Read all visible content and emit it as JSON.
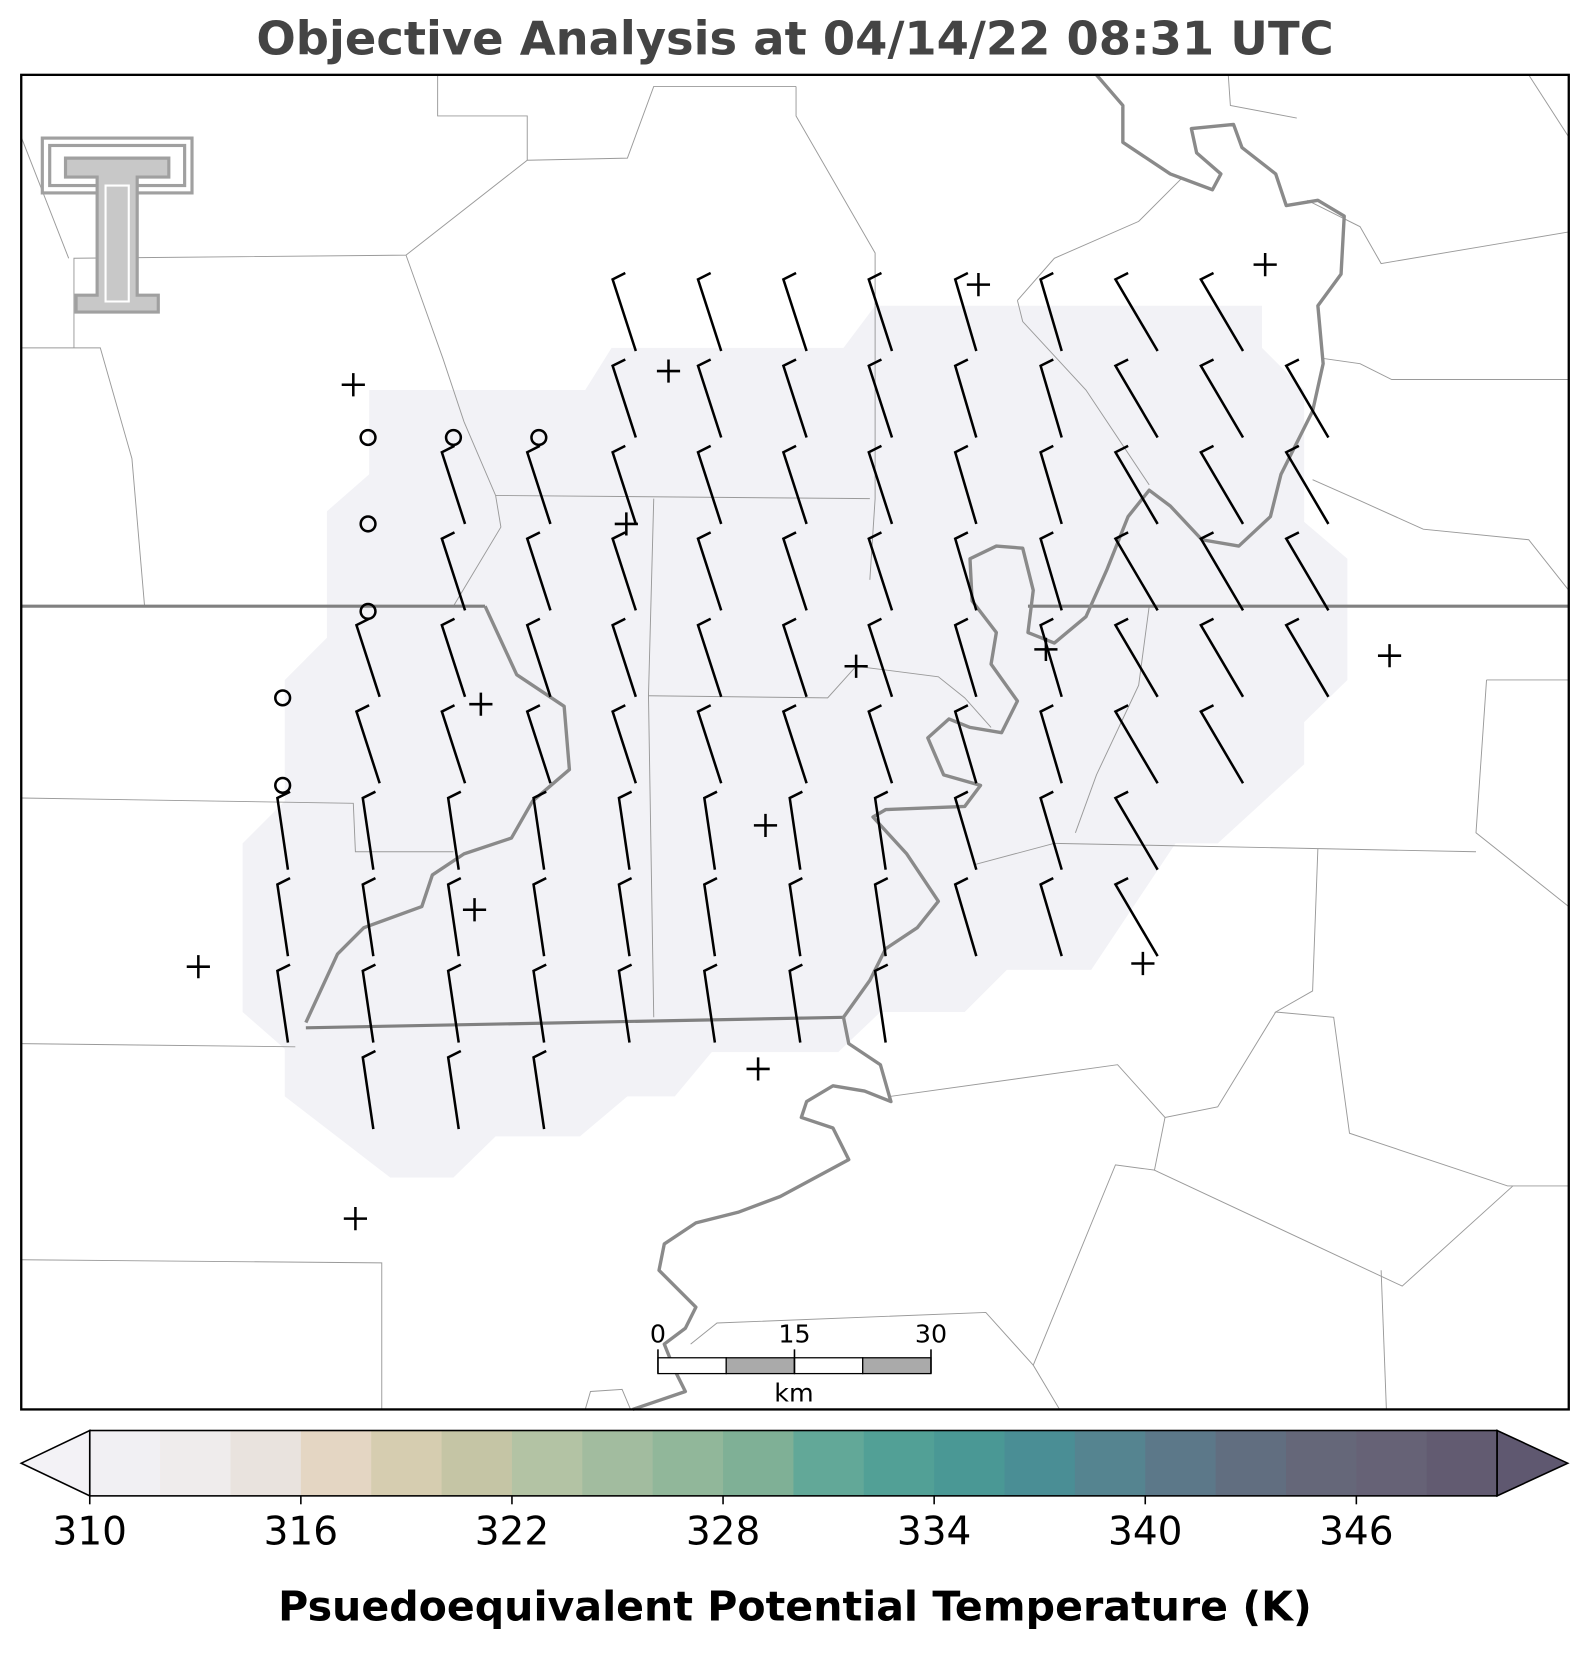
{
  "title": "Objective Analysis at 04/14/22 08:31 UTC",
  "scale_bar": {
    "ticks": [
      0,
      15,
      30
    ],
    "unit": "km"
  },
  "colorbar": {
    "range": [
      310,
      350
    ],
    "ticks": [
      310,
      316,
      322,
      328,
      334,
      340,
      346
    ],
    "colors": [
      "#f1f0f3",
      "#efecec",
      "#e9e3de",
      "#e4d6c3",
      "#d6cdb0",
      "#c5c5a5",
      "#b3c3a4",
      "#a2bc9f",
      "#91b79a",
      "#7fb096",
      "#62a898",
      "#52a096",
      "#4a9895",
      "#4a8e95",
      "#558490",
      "#5c7889",
      "#616e80",
      "#656779",
      "#666276",
      "#625b71"
    ],
    "extend_colors": [
      "#f3f2f6",
      "#5f5870"
    ],
    "label": "Psuedoequivalent Potential Temperature (K)"
  }
}
